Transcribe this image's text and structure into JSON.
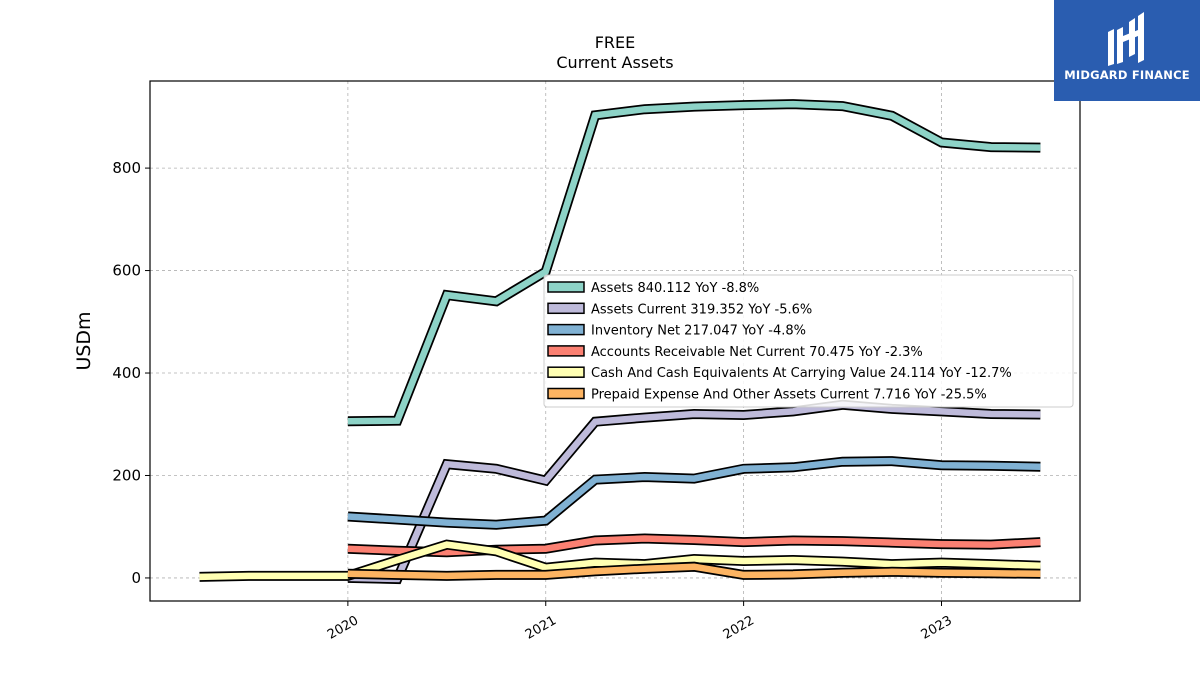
{
  "chart_data": {
    "type": "line",
    "title": "FREE",
    "subtitle": "Current  Assets",
    "xlabel": "",
    "ylabel": "USDm",
    "xlim": [
      2019.0,
      2023.7
    ],
    "ylim": [
      -45,
      970
    ],
    "x_ticks": [
      2020,
      2021,
      2022,
      2023
    ],
    "x_tick_labels": [
      "2020",
      "2021",
      "2022",
      "2023"
    ],
    "y_ticks": [
      0,
      200,
      400,
      600,
      800
    ],
    "y_tick_labels": [
      "0",
      "200",
      "400",
      "600",
      "800"
    ],
    "grid": true,
    "legend_position": "center-right",
    "series": [
      {
        "name": "Assets  840.112 YoY -8.8%",
        "color": "#8dd3c7",
        "x": [
          2020.0,
          2020.25,
          2020.5,
          2020.75,
          2021.0,
          2021.25,
          2021.5,
          2021.75,
          2022.0,
          2022.25,
          2022.5,
          2022.75,
          2023.0,
          2023.25,
          2023.5
        ],
        "values": [
          306,
          307,
          552,
          540,
          598,
          903,
          915,
          920,
          923,
          925,
          921,
          902,
          850,
          841,
          840
        ]
      },
      {
        "name": "Assets Current  319.352 YoY -5.6%",
        "color": "#bebada",
        "x": [
          2020.0,
          2020.25,
          2020.5,
          2020.75,
          2021.0,
          2021.25,
          2021.5,
          2021.75,
          2022.0,
          2022.25,
          2022.5,
          2022.75,
          2023.0,
          2023.25,
          2023.5
        ],
        "values": [
          0,
          -2,
          222,
          213,
          190,
          305,
          313,
          320,
          318,
          325,
          338,
          330,
          325,
          320,
          319
        ]
      },
      {
        "name": "Inventory Net  217.047 YoY -4.8%",
        "color": "#80b1d3",
        "x": [
          2020.0,
          2020.25,
          2020.5,
          2020.75,
          2021.0,
          2021.25,
          2021.5,
          2021.75,
          2022.0,
          2022.25,
          2022.5,
          2022.75,
          2023.0,
          2023.25,
          2023.5
        ],
        "values": [
          120,
          114,
          108,
          104,
          112,
          192,
          197,
          194,
          213,
          216,
          227,
          228,
          220,
          219,
          217
        ]
      },
      {
        "name": "Accounts Receivable Net Current  70.475 YoY -2.3%",
        "color": "#fb8072",
        "x": [
          2020.0,
          2020.25,
          2020.5,
          2020.75,
          2021.0,
          2021.25,
          2021.5,
          2021.75,
          2022.0,
          2022.25,
          2022.5,
          2022.75,
          2023.0,
          2023.25,
          2023.5
        ],
        "values": [
          57,
          53,
          50,
          55,
          57,
          73,
          77,
          74,
          70,
          73,
          72,
          69,
          66,
          65,
          70
        ]
      },
      {
        "name": "Cash And Cash Equivalents At Carrying Value  24.114 YoY -12.7%",
        "color": "#ffffb3",
        "x": [
          2019.25,
          2019.5,
          2019.75,
          2020.0,
          2020.25,
          2020.5,
          2020.75,
          2021.0,
          2021.25,
          2021.5,
          2021.75,
          2022.0,
          2022.25,
          2022.5,
          2022.75,
          2023.0,
          2023.25,
          2023.5
        ],
        "values": [
          2,
          4,
          4,
          4,
          35,
          65,
          52,
          20,
          30,
          27,
          37,
          33,
          35,
          32,
          27,
          30,
          27,
          24
        ]
      },
      {
        "name": "Prepaid Expense And Other Assets Current  7.716 YoY -25.5%",
        "color": "#fdb462",
        "x": [
          2020.0,
          2020.25,
          2020.5,
          2020.75,
          2021.0,
          2021.25,
          2021.5,
          2021.75,
          2022.0,
          2022.25,
          2022.5,
          2022.75,
          2023.0,
          2023.25,
          2023.5
        ],
        "values": [
          8,
          6,
          4,
          6,
          6,
          13,
          18,
          22,
          6,
          7,
          10,
          12,
          10,
          9,
          8
        ]
      }
    ]
  },
  "logo": {
    "text": "MIDGARD FINANCE",
    "background": "#2a5db0"
  }
}
